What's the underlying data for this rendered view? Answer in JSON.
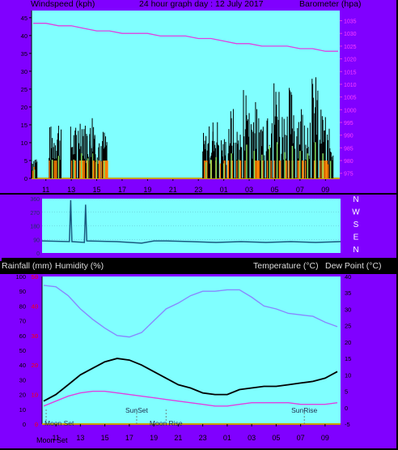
{
  "header": {
    "windspeed_label": "Windspeed (kph)",
    "title": "24 hour graph day : 12 July 2017",
    "barometer_label": "Barometer (hpa)"
  },
  "middle": {
    "rain_label": "Rainfall (mm)",
    "humidity_label": "Humidity (%)",
    "temperature_label": "Temperature (°C)",
    "dewpoint_label": "Dew Point (°C)"
  },
  "colors": {
    "frame": "#8000ff",
    "plot_bg": "#80ffff",
    "wind_gust": "#000000",
    "wind_avg": "#80e060",
    "wind_bar": "#ff8000",
    "barometer": "#e040e0",
    "direction": "#1a5a80",
    "humidity": "#8888ff",
    "temperature": "#000000",
    "dewpoint": "#e040e0",
    "rain_axis": "#ff0000"
  },
  "chart_data": [
    {
      "type": "line",
      "name": "wind-barometer",
      "x_ticks": [
        "11",
        "13",
        "15",
        "17",
        "19",
        "21",
        "23",
        "01",
        "03",
        "05",
        "07",
        "09"
      ],
      "y_left": {
        "label": "Windspeed (kph)",
        "ticks": [
          0,
          5,
          10,
          15,
          20,
          25,
          30,
          35,
          40,
          45
        ],
        "ylim": [
          0,
          47
        ]
      },
      "y_right": {
        "label": "Barometer (hpa)",
        "ticks": [
          975,
          980,
          985,
          990,
          995,
          1000,
          1005,
          1010,
          1015,
          1020,
          1025,
          1030,
          1035
        ],
        "ylim": [
          973,
          1039
        ]
      },
      "series": [
        {
          "name": "Barometer",
          "x": [
            0,
            1,
            2,
            3,
            4,
            5,
            6,
            7,
            8,
            9,
            10,
            11,
            12,
            13,
            14,
            15,
            16,
            17,
            18,
            19,
            20,
            21,
            22,
            23,
            24
          ],
          "values": [
            1034,
            1034,
            1033,
            1033,
            1032,
            1031,
            1031,
            1030,
            1030,
            1030,
            1029,
            1029,
            1029,
            1028,
            1028,
            1027,
            1026,
            1026,
            1025,
            1025,
            1025,
            1024,
            1024,
            1023,
            1023
          ]
        },
        {
          "name": "Gust peaks",
          "x": [
            0.1,
            1.5,
            2.0,
            3.2,
            3.8,
            4.3,
            4.7,
            5.0,
            5.6,
            13.6,
            14.0,
            14.4,
            15.0,
            15.6,
            16.2,
            16.8,
            17.4,
            18.0,
            18.6,
            19.2,
            19.8,
            20.4,
            21.0,
            21.6,
            22.2,
            22.8,
            23.4
          ],
          "values": [
            7,
            15,
            18,
            15,
            20,
            16,
            20,
            15,
            14,
            13,
            15,
            17,
            12,
            20,
            15,
            27,
            22,
            19,
            26,
            29,
            21,
            26,
            22,
            20,
            29,
            20,
            14
          ]
        }
      ]
    },
    {
      "type": "line",
      "name": "wind-direction",
      "y_labels": [
        "N",
        "W",
        "S",
        "E",
        "N"
      ],
      "y_ticks": [
        360,
        270,
        180,
        90,
        0
      ],
      "x": [
        0,
        2.2,
        2.3,
        2.4,
        3.4,
        3.5,
        3.6,
        6,
        8,
        9,
        10,
        12,
        14,
        16,
        18,
        20,
        22,
        24
      ],
      "values": [
        80,
        75,
        350,
        75,
        70,
        320,
        80,
        75,
        65,
        80,
        80,
        75,
        70,
        75,
        70,
        75,
        70,
        75
      ]
    },
    {
      "type": "line",
      "name": "temperature-humidity",
      "x_ticks": [
        "11",
        "13",
        "15",
        "17",
        "19",
        "21",
        "23",
        "01",
        "03",
        "05",
        "07",
        "09"
      ],
      "y_left": {
        "label": "Humidity (%)",
        "ticks": [
          0,
          10,
          20,
          30,
          40,
          50,
          60,
          70,
          80,
          90,
          100
        ],
        "ylim": [
          0,
          100
        ]
      },
      "y_rain": {
        "label": "Rainfall (mm)",
        "ticks": [
          0,
          10,
          20,
          30,
          40,
          50
        ],
        "ylim": [
          0,
          50
        ]
      },
      "y_right": {
        "label": "Temperature (°C)",
        "ticks": [
          -5,
          0,
          5,
          10,
          15,
          20,
          25,
          30,
          35,
          40
        ],
        "ylim": [
          -5,
          40
        ]
      },
      "series": [
        {
          "name": "Humidity",
          "x": [
            0,
            1,
            2,
            3,
            4,
            5,
            6,
            7,
            8,
            9,
            10,
            11,
            12,
            13,
            14,
            15,
            16,
            17,
            18,
            19,
            20,
            21,
            22,
            23,
            24
          ],
          "values": [
            94,
            93,
            87,
            78,
            71,
            65,
            60,
            59,
            62,
            70,
            78,
            82,
            87,
            90,
            90,
            91,
            91,
            86,
            80,
            78,
            75,
            74,
            73,
            69,
            66
          ]
        },
        {
          "name": "Temperature",
          "x": [
            0,
            1,
            2,
            3,
            4,
            5,
            6,
            7,
            8,
            9,
            10,
            11,
            12,
            13,
            14,
            15,
            16,
            17,
            18,
            19,
            20,
            21,
            22,
            23,
            24
          ],
          "values": [
            2,
            4,
            7,
            10,
            12,
            14,
            15,
            14.5,
            13,
            11,
            9,
            7,
            6,
            4.5,
            4,
            4,
            5.5,
            6,
            6.5,
            6.5,
            7,
            7.5,
            8,
            9,
            11
          ]
        },
        {
          "name": "Dew Point",
          "x": [
            0,
            1,
            2,
            3,
            4,
            5,
            6,
            7,
            8,
            9,
            10,
            11,
            12,
            13,
            14,
            15,
            16,
            17,
            18,
            19,
            20,
            21,
            22,
            23,
            24
          ],
          "values": [
            0.5,
            2,
            3.5,
            4.5,
            5,
            5,
            4.5,
            4,
            3.5,
            3,
            2.5,
            2,
            1.5,
            1,
            0.5,
            0.5,
            1,
            1.5,
            1.5,
            1.5,
            1.5,
            1,
            1,
            1,
            1.5
          ]
        }
      ],
      "events": [
        {
          "label": "Moon Set",
          "x": 0.2
        },
        {
          "label": "SunSet",
          "x": 7.6
        },
        {
          "label": "Moon Rise",
          "x": 10.0
        },
        {
          "label": "SunRise",
          "x": 21.3
        }
      ],
      "bottom_label": "Moon Set"
    }
  ]
}
